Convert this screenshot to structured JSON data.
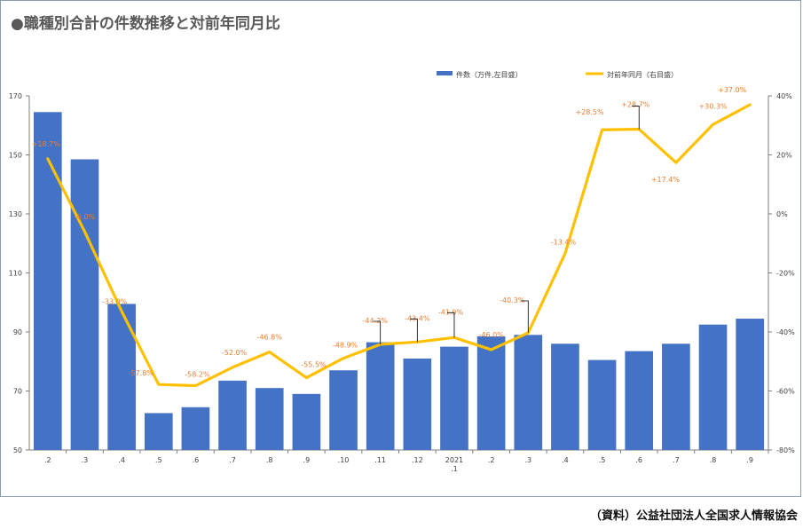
{
  "title": "●職種別合計の件数推移と対前年同月比",
  "source": "（資料）公益社団法人全国求人情報協会",
  "colors": {
    "bar": "#4472c4",
    "line": "#ffc000",
    "label": "#ed7d31",
    "axis": "#7f7f7f"
  },
  "chart_data": {
    "type": "bar+line",
    "categories": [
      ".2",
      ".3",
      ".4",
      ".5",
      ".6",
      ".7",
      ".8",
      ".9",
      ".10",
      ".11",
      ".12",
      "2021\n.1",
      ".2",
      ".3",
      ".4",
      ".5",
      ".6",
      ".7",
      ".8",
      ".9"
    ],
    "series": [
      {
        "name": "件数（万件,左目盛）",
        "kind": "bar",
        "axis": "left",
        "values": [
          164.5,
          148.5,
          99.5,
          62.5,
          64.5,
          73.5,
          71,
          69,
          77,
          86.5,
          81,
          85,
          88.5,
          89,
          86,
          80.5,
          83.5,
          86,
          92.5,
          94.5
        ]
      },
      {
        "name": "対前年同月（右目盛）",
        "kind": "line",
        "axis": "right",
        "values": [
          18.7,
          -6.0,
          -33.0,
          -57.8,
          -58.2,
          -52.0,
          -46.8,
          -55.5,
          -48.9,
          -44.2,
          -43.4,
          -41.9,
          -46.0,
          -40.3,
          -13.4,
          28.5,
          28.7,
          17.4,
          30.3,
          37.0
        ]
      }
    ],
    "data_labels": [
      "+18.7%",
      "-6.0%",
      "-33.0%",
      "-57.8%",
      "-58.2%",
      "-52.0%",
      "-46.8%",
      "-55.5%",
      "-48.9%",
      "-44.2%",
      "-43.4%",
      "-41.9%",
      "-46.0%",
      "-40.3%",
      "-13.4%",
      "+28.5%",
      "+28.7%",
      "+17.4%",
      "+30.3%",
      "+37.0%"
    ],
    "y_left": {
      "min": 50,
      "max": 170,
      "ticks": [
        "50",
        "70",
        "90",
        "110",
        "130",
        "150",
        "170"
      ]
    },
    "y_right": {
      "min": -80,
      "max": 40,
      "ticks": [
        "-80%",
        "-60%",
        "-40%",
        "-20%",
        "0%",
        "20%",
        "40%"
      ]
    },
    "legend_position": "top-right",
    "grid": false
  }
}
